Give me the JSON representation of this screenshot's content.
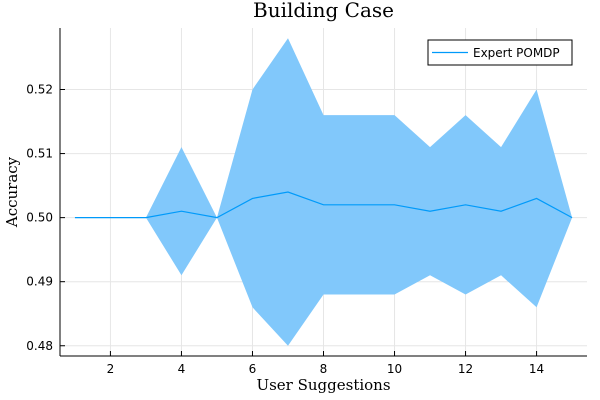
{
  "chart_data": {
    "type": "line",
    "title": "Building Case",
    "xlabel": "User Suggestions",
    "ylabel": "Accuracy",
    "xlim": [
      0.58,
      15.42
    ],
    "ylim": [
      0.4784,
      0.5296
    ],
    "xticks": [
      2,
      4,
      6,
      8,
      10,
      12,
      14
    ],
    "yticks": [
      0.48,
      0.49,
      0.5,
      0.51,
      0.52
    ],
    "ytick_labels": [
      "0.48",
      "0.49",
      "0.50",
      "0.51",
      "0.52"
    ],
    "grid": true,
    "legend_position": "top-right",
    "colors": {
      "line": "#009AFA",
      "band": "#81C8FB"
    },
    "series": [
      {
        "name": "Expert POMDP",
        "x": [
          1,
          2,
          3,
          4,
          5,
          6,
          7,
          8,
          9,
          10,
          11,
          12,
          13,
          14,
          15
        ],
        "y": [
          0.5,
          0.5,
          0.5,
          0.501,
          0.5,
          0.503,
          0.504,
          0.502,
          0.502,
          0.502,
          0.501,
          0.502,
          0.501,
          0.503,
          0.5
        ],
        "upper": [
          0.5,
          0.5,
          0.5,
          0.511,
          0.5,
          0.52,
          0.528,
          0.516,
          0.516,
          0.516,
          0.511,
          0.516,
          0.511,
          0.52,
          0.5
        ],
        "lower": [
          0.5,
          0.5,
          0.5,
          0.491,
          0.5,
          0.486,
          0.48,
          0.488,
          0.488,
          0.488,
          0.491,
          0.488,
          0.491,
          0.486,
          0.5
        ]
      }
    ]
  }
}
